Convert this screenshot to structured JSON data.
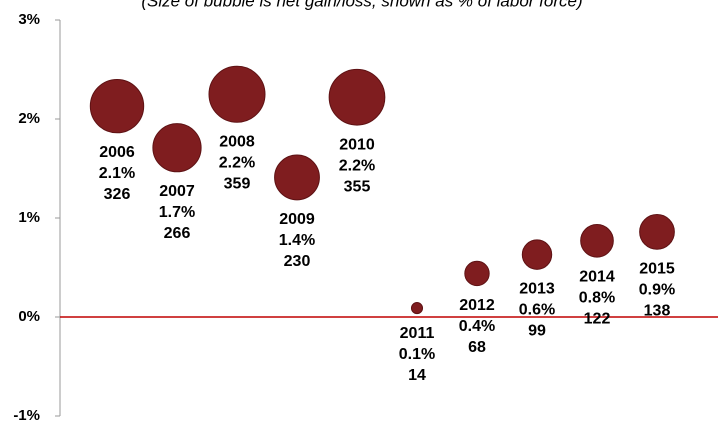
{
  "chart_data": {
    "type": "bubble",
    "subtitle": "(Size of bubble is net gain/loss, shown as % of labor force)",
    "categories": [
      "2006",
      "2007",
      "2008",
      "2009",
      "2010",
      "2011",
      "2012",
      "2013",
      "2014",
      "2015"
    ],
    "series": [
      {
        "color": "#7f1d1f",
        "values": [
          2.13,
          1.71,
          2.25,
          1.41,
          2.22,
          0.09,
          0.44,
          0.63,
          0.77,
          0.86
        ],
        "value_labels": [
          "2.1%",
          "1.7%",
          "2.2%",
          "1.4%",
          "2.2%",
          "0.1%",
          "0.4%",
          "0.6%",
          "0.8%",
          "0.9%"
        ],
        "sizes": [
          326,
          266,
          359,
          230,
          355,
          14,
          68,
          99,
          122,
          138
        ]
      }
    ],
    "ylim": [
      -1,
      3
    ],
    "yticks": [
      {
        "value": -1,
        "label": "-1%"
      },
      {
        "value": 0,
        "label": "0%"
      },
      {
        "value": 1,
        "label": "1%"
      },
      {
        "value": 2,
        "label": "2%"
      },
      {
        "value": 3,
        "label": "3%"
      }
    ],
    "zero_line_color": "#c00000"
  }
}
